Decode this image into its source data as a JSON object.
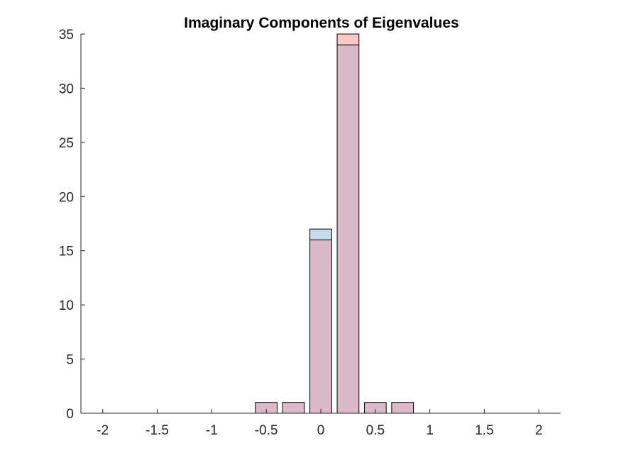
{
  "chart_data": {
    "type": "bar",
    "title": "Imaginary Components of Eigenvalues",
    "xlabel": "",
    "ylabel": "",
    "xlim": [
      -2.2,
      2.2
    ],
    "ylim": [
      0,
      35
    ],
    "bin_width": 0.25,
    "x_ticks": [
      -2,
      -1.5,
      -1,
      -0.5,
      0,
      0.5,
      1,
      1.5,
      2
    ],
    "x_tick_labels": [
      "-2",
      "-1.5",
      "-1",
      "-0.5",
      "0",
      "0.5",
      "1",
      "1.5",
      "2"
    ],
    "y_ticks": [
      0,
      5,
      10,
      15,
      20,
      25,
      30,
      35
    ],
    "y_tick_labels": [
      "0",
      "5",
      "10",
      "15",
      "20",
      "25",
      "30",
      "35"
    ],
    "grid": false,
    "legend": "none",
    "bin_centers": [
      -2,
      -1.75,
      -1.5,
      -1.25,
      -1,
      -0.75,
      -0.5,
      -0.25,
      0,
      0.25,
      0.5,
      0.75,
      1,
      1.25,
      1.5,
      1.75,
      2
    ],
    "series": [
      {
        "color": "#ffc8c8",
        "values": [
          0,
          0,
          0,
          0,
          0,
          0,
          1,
          1,
          16,
          35,
          1,
          1,
          0,
          0,
          0,
          0,
          0
        ]
      },
      {
        "color": "#c6dcee",
        "values": [
          0,
          0,
          0,
          0,
          0,
          0,
          1,
          1,
          17,
          34,
          1,
          1,
          0,
          0,
          0,
          0,
          0
        ]
      }
    ],
    "overlap_color": "#dbb9c8",
    "edge_color": "#000000",
    "axis_color": "#262626"
  }
}
